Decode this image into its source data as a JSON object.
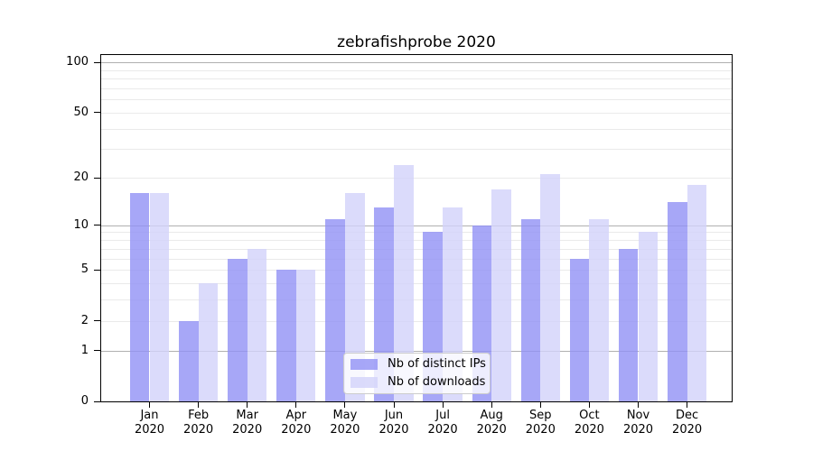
{
  "title": "zebrafishprobe 2020",
  "legend": {
    "position": "lower center",
    "items": [
      {
        "label": "Nb of distinct IPs",
        "color": "#a7a7f7"
      },
      {
        "label": "Nb of downloads",
        "color": "#dbdbfb"
      }
    ]
  },
  "x_axis": {
    "months": [
      "Jan",
      "Feb",
      "Mar",
      "Apr",
      "May",
      "Jun",
      "Jul",
      "Aug",
      "Sep",
      "Oct",
      "Nov",
      "Dec"
    ],
    "year": "2020"
  },
  "y_axis": {
    "tick_labels_top_to_bottom": [
      "100",
      "50",
      "20",
      "10",
      "5",
      "2",
      "1",
      "0"
    ]
  },
  "colors": {
    "bar_distinct_ips": "rgba(145,145,245,0.8)",
    "bar_downloads": "rgba(210,210,250,0.8)",
    "grid_major": "#b0b0b0",
    "grid_minor": "#eaeaea",
    "spine": "#000000",
    "text": "#000000",
    "legend_bg": "rgba(255,255,255,0.8)",
    "legend_border": "#cccccc"
  },
  "chart_data": {
    "type": "bar",
    "title": "zebrafishprobe 2020",
    "categories": [
      "Jan 2020",
      "Feb 2020",
      "Mar 2020",
      "Apr 2020",
      "May 2020",
      "Jun 2020",
      "Jul 2020",
      "Aug 2020",
      "Sep 2020",
      "Oct 2020",
      "Nov 2020",
      "Dec 2020"
    ],
    "series": [
      {
        "name": "Nb of distinct IPs",
        "color": "rgba(145,145,245,0.8)",
        "values": [
          16,
          2,
          6,
          5,
          11,
          13,
          9,
          10,
          11,
          6,
          7,
          14
        ]
      },
      {
        "name": "Nb of downloads",
        "color": "rgba(210,210,250,0.8)",
        "values": [
          16,
          4,
          7,
          5,
          16,
          24,
          13,
          17,
          21,
          11,
          9,
          18
        ]
      }
    ],
    "xlabel": "",
    "ylabel": "",
    "y_scale": "log10(1+v)",
    "y_ticks": [
      0,
      1,
      2,
      5,
      10,
      20,
      50,
      100
    ],
    "y_major_gridlines": [
      1,
      10,
      100
    ],
    "y_minor_gridlines": [
      2,
      3,
      4,
      5,
      6,
      7,
      8,
      9,
      20,
      30,
      40,
      50,
      60,
      70,
      80,
      90
    ],
    "ylim": [
      0,
      110.5
    ],
    "grid": true,
    "legend_position": "lower center"
  }
}
